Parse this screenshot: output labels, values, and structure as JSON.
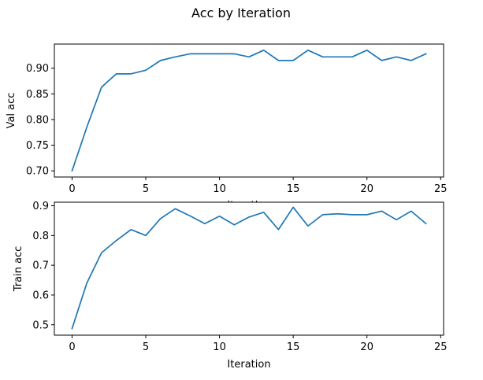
{
  "figure": {
    "title": "Acc by Iteration"
  },
  "chart_data": [
    {
      "type": "line",
      "title": "",
      "xlabel": "Iteration",
      "ylabel": "Val acc",
      "xlim": [
        -1.2,
        25.2
      ],
      "ylim": [
        0.688,
        0.947
      ],
      "xticks": [
        0,
        5,
        10,
        15,
        20,
        25
      ],
      "yticks": [
        0.7,
        0.75,
        0.8,
        0.85,
        0.9
      ],
      "ytick_labels": [
        "0.70",
        "0.75",
        "0.80",
        "0.85",
        "0.90"
      ],
      "grid": false,
      "color": "#1f77b4",
      "x": [
        0,
        1,
        2,
        3,
        4,
        5,
        6,
        7,
        8,
        9,
        10,
        11,
        12,
        13,
        14,
        15,
        16,
        17,
        18,
        19,
        20,
        21,
        22,
        23,
        24
      ],
      "values": [
        0.7,
        0.785,
        0.863,
        0.889,
        0.889,
        0.896,
        0.915,
        0.922,
        0.928,
        0.928,
        0.928,
        0.928,
        0.922,
        0.935,
        0.915,
        0.915,
        0.935,
        0.922,
        0.922,
        0.922,
        0.935,
        0.915,
        0.922,
        0.915,
        0.928
      ]
    },
    {
      "type": "line",
      "title": "",
      "xlabel": "Iteration",
      "ylabel": "Train acc",
      "xlim": [
        -1.2,
        25.2
      ],
      "ylim": [
        0.465,
        0.912
      ],
      "xticks": [
        0,
        5,
        10,
        15,
        20,
        25
      ],
      "yticks": [
        0.5,
        0.6,
        0.7,
        0.8,
        0.9
      ],
      "ytick_labels": [
        "0.5",
        "0.6",
        "0.7",
        "0.8",
        "0.9"
      ],
      "grid": false,
      "color": "#1f77b4",
      "x": [
        0,
        1,
        2,
        3,
        4,
        5,
        6,
        7,
        8,
        9,
        10,
        11,
        12,
        13,
        14,
        15,
        16,
        17,
        18,
        19,
        20,
        21,
        22,
        23,
        24
      ],
      "values": [
        0.487,
        0.64,
        0.742,
        0.783,
        0.82,
        0.8,
        0.857,
        0.89,
        0.866,
        0.84,
        0.865,
        0.836,
        0.862,
        0.878,
        0.82,
        0.895,
        0.832,
        0.87,
        0.873,
        0.87,
        0.87,
        0.882,
        0.853,
        0.882,
        0.84
      ]
    }
  ]
}
